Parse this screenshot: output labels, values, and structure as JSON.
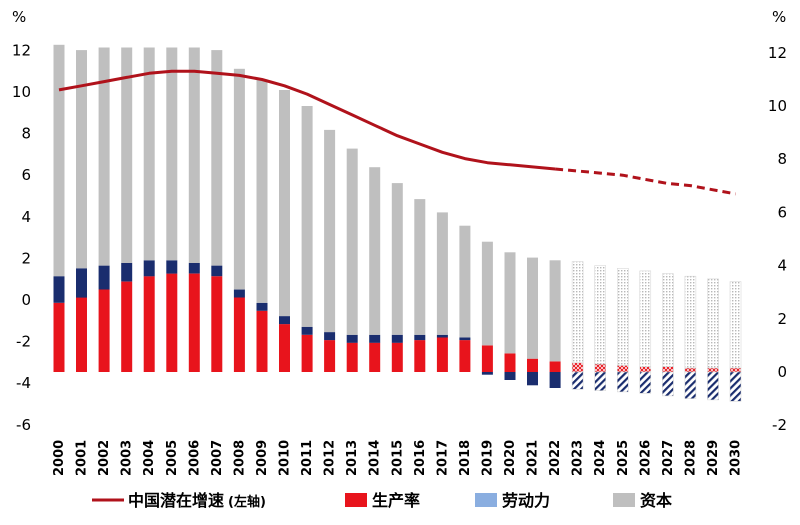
{
  "chart_data": {
    "type": "bar",
    "left_axis_unit": "%",
    "right_axis_unit": "%",
    "left_ylim": [
      -6,
      12
    ],
    "right_ylim": [
      -2,
      12
    ],
    "left_ticks": [
      -6,
      -4,
      -2,
      0,
      2,
      4,
      6,
      8,
      10,
      12
    ],
    "right_ticks": [
      -2,
      0,
      2,
      4,
      6,
      8,
      10,
      12
    ],
    "categories": [
      "2000",
      "2001",
      "2002",
      "2003",
      "2004",
      "2005",
      "2006",
      "2007",
      "2008",
      "2009",
      "2010",
      "2011",
      "2012",
      "2013",
      "2014",
      "2015",
      "2016",
      "2017",
      "2018",
      "2019",
      "2020",
      "2021",
      "2022",
      "2023",
      "2024",
      "2025",
      "2026",
      "2027",
      "2028",
      "2029",
      "2030"
    ],
    "forecast_from": "2023",
    "series": [
      {
        "name": "中国潜在增速(左轴)",
        "type": "line",
        "axis": "left",
        "color": "#b0121b",
        "values": [
          10.1,
          10.3,
          10.5,
          10.7,
          10.9,
          11.0,
          11.0,
          10.9,
          10.8,
          10.6,
          10.3,
          9.9,
          9.4,
          8.9,
          8.4,
          7.9,
          7.5,
          7.1,
          6.8,
          6.6,
          6.5,
          6.4,
          6.3,
          6.2,
          6.1,
          6.0,
          5.8,
          5.6,
          5.5,
          5.3,
          5.1
        ]
      },
      {
        "name": "生产率",
        "type": "bar",
        "axis": "right",
        "color": "#e8141c",
        "values": [
          2.6,
          2.8,
          3.1,
          3.4,
          3.6,
          3.7,
          3.7,
          3.6,
          2.8,
          2.3,
          1.8,
          1.4,
          1.2,
          1.1,
          1.1,
          1.1,
          1.2,
          1.3,
          1.2,
          1.0,
          0.7,
          0.5,
          0.4,
          0.35,
          0.3,
          0.25,
          0.2,
          0.2,
          0.15,
          0.15,
          0.15
        ]
      },
      {
        "name": "劳动力",
        "type": "bar",
        "axis": "right",
        "color": "#1a2d6e",
        "legend_color": "#8aaee0",
        "values": [
          1.0,
          1.1,
          0.9,
          0.7,
          0.6,
          0.5,
          0.4,
          0.4,
          0.3,
          0.3,
          0.3,
          0.3,
          0.3,
          0.3,
          0.3,
          0.3,
          0.2,
          0.1,
          0.1,
          -0.1,
          -0.3,
          -0.5,
          -0.6,
          -0.65,
          -0.7,
          -0.75,
          -0.8,
          -0.9,
          -1.0,
          -1.05,
          -1.1
        ]
      },
      {
        "name": "资本",
        "type": "bar",
        "axis": "right",
        "color": "#bfbfbf",
        "values": [
          8.7,
          8.2,
          8.2,
          8.1,
          8.0,
          8.0,
          8.1,
          8.1,
          8.3,
          8.4,
          8.5,
          8.3,
          7.6,
          7.0,
          6.3,
          5.7,
          5.1,
          4.6,
          4.2,
          3.9,
          3.8,
          3.8,
          3.8,
          3.8,
          3.7,
          3.65,
          3.6,
          3.5,
          3.45,
          3.35,
          3.25
        ]
      }
    ],
    "legend": [
      {
        "label": "中国潜在增速",
        "suffix": "(左轴)",
        "marker": "line",
        "color": "#b0121b"
      },
      {
        "label": "生产率",
        "marker": "box",
        "color": "#e8141c"
      },
      {
        "label": "劳动力",
        "marker": "box",
        "color": "#8aaee0"
      },
      {
        "label": "资本",
        "marker": "box",
        "color": "#bfbfbf"
      }
    ],
    "legend_position": "bottom",
    "grid": false
  }
}
